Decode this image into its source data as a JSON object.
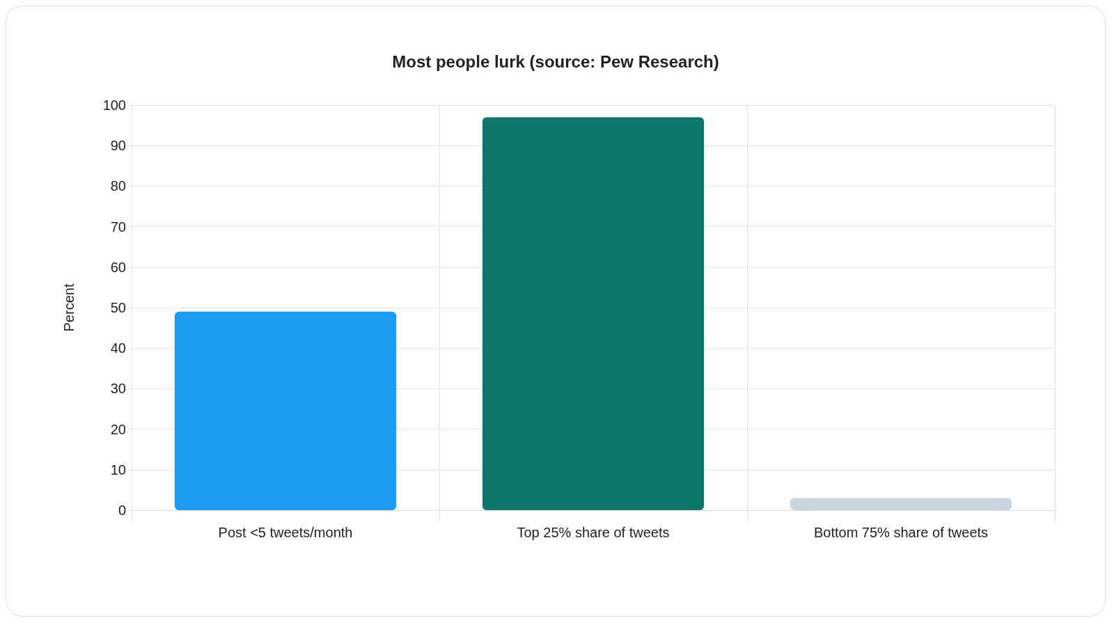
{
  "chart_data": {
    "type": "bar",
    "title": "Most people lurk (source: Pew Research)",
    "ylabel": "Percent",
    "categories": [
      "Post <5 tweets/month",
      "Top 25% share of tweets",
      "Bottom 75% share of tweets"
    ],
    "values": [
      49,
      97,
      3
    ],
    "colors": [
      "#1d9bf0",
      "#0f766e",
      "#cbd5e1"
    ],
    "ylim": [
      0,
      100
    ],
    "yticks": [
      0,
      10,
      20,
      30,
      40,
      50,
      60,
      70,
      80,
      90,
      100
    ],
    "grid": true
  }
}
